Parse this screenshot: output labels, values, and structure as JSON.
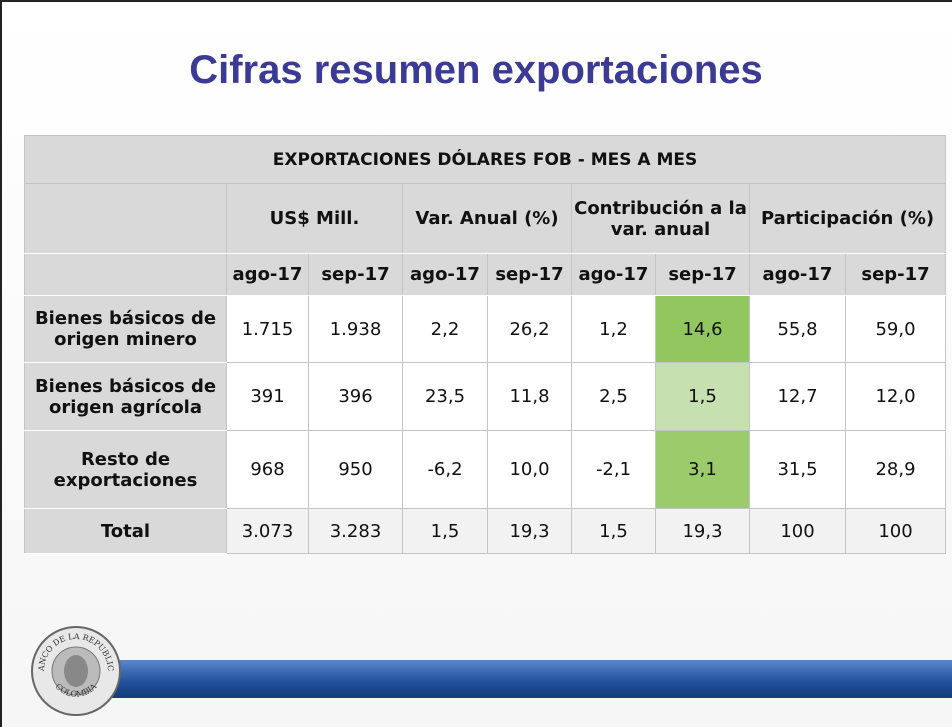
{
  "header": {
    "title": "Cifras resumen exportaciones"
  },
  "table": {
    "title": "EXPORTACIONES DÓLARES FOB - MES A MES",
    "groups": [
      "US$ Mill.",
      "Var. Anual (%)",
      "Contribución a la var. anual",
      "Participación (%)"
    ],
    "months": [
      "ago-17",
      "sep-17",
      "ago-17",
      "sep-17",
      "ago-17",
      "sep-17",
      "ago-17",
      "sep-17"
    ],
    "rows": [
      {
        "label": "Bienes básicos de origen minero",
        "values": [
          "1.715",
          "1.938",
          "2,2",
          "26,2",
          "1,2",
          "14,6",
          "55,8",
          "59,0"
        ]
      },
      {
        "label": "Bienes básicos de origen agrícola",
        "values": [
          "391",
          "396",
          "23,5",
          "11,8",
          "2,5",
          "1,5",
          "12,7",
          "12,0"
        ]
      },
      {
        "label": "Resto de exportaciones",
        "values": [
          "968",
          "950",
          "-6,2",
          "10,0",
          "-2,1",
          "3,1",
          "31,5",
          "28,9"
        ]
      },
      {
        "label": "Total",
        "values": [
          "3.073",
          "3.283",
          "1,5",
          "19,3",
          "1,5",
          "19,3",
          "100",
          "100"
        ]
      }
    ],
    "highlight": {
      "column": 5,
      "colors": [
        "#92c65e",
        "#c6e0b0",
        "#9bcb6a",
        null
      ]
    }
  },
  "logo": {
    "top": "BANCO DE LA REPUBLICA",
    "bottom": "COLOMBIA"
  }
}
